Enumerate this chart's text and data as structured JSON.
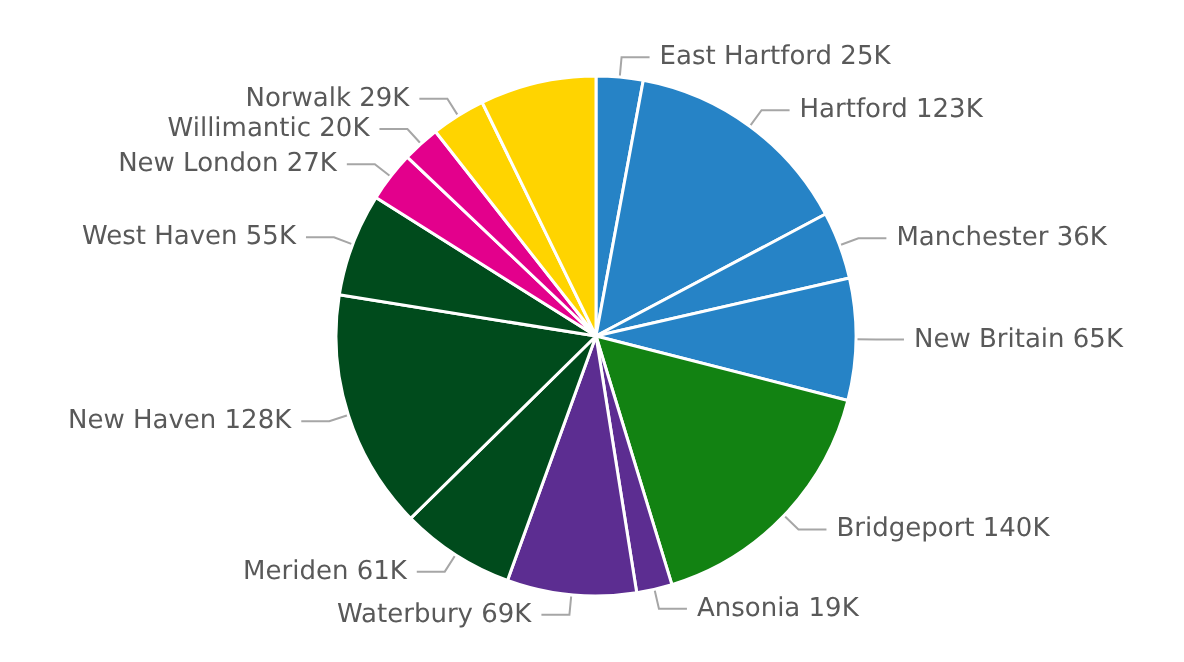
{
  "chart_data": {
    "type": "pie",
    "categories": [
      "East Hartford",
      "Hartford",
      "Manchester",
      "New Britain",
      "Bridgeport",
      "Ansonia",
      "Waterbury",
      "Meriden",
      "New Haven",
      "West Haven",
      "New London",
      "Willimantic",
      "Norwalk",
      null
    ],
    "values": [
      25,
      123,
      36,
      65,
      140,
      19,
      69,
      61,
      128,
      55,
      27,
      20,
      29,
      62
    ],
    "value_labels": [
      "25K",
      "123K",
      "36K",
      "65K",
      "140K",
      "19K",
      "69K",
      "61K",
      "128K",
      "55K",
      "27K",
      "20K",
      "29K",
      null
    ],
    "colors": [
      "#2683c6",
      "#2683c6",
      "#2683c6",
      "#2683c6",
      "#128212",
      "#5c2d91",
      "#5c2d91",
      "#004b1c",
      "#004b1c",
      "#004b1c",
      "#e3008c",
      "#e3008c",
      "#ffd400",
      "#ffd400"
    ],
    "legend": false
  }
}
